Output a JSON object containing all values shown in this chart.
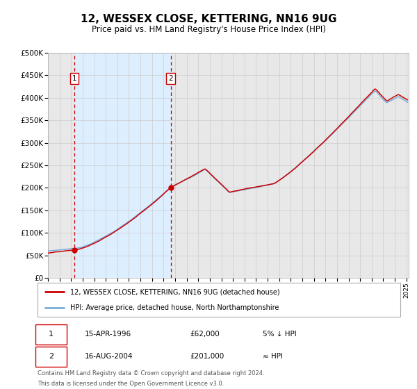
{
  "title": "12, WESSEX CLOSE, KETTERING, NN16 9UG",
  "subtitle": "Price paid vs. HM Land Registry's House Price Index (HPI)",
  "legend_line1": "12, WESSEX CLOSE, KETTERING, NN16 9UG (detached house)",
  "legend_line2": "HPI: Average price, detached house, North Northamptonshire",
  "sale1_date": "15-APR-1996",
  "sale1_price": "£62,000",
  "sale1_hpi": "5% ↓ HPI",
  "sale2_date": "16-AUG-2004",
  "sale2_price": "£201,000",
  "sale2_hpi": "≈ HPI",
  "footnote_line1": "Contains HM Land Registry data © Crown copyright and database right 2024.",
  "footnote_line2": "This data is licensed under the Open Government Licence v3.0.",
  "hpi_color": "#7aaddb",
  "price_color": "#cc0000",
  "sale_marker_color": "#cc0000",
  "dashed_line_color": "#cc0000",
  "shaded_region_color": "#ddeeff",
  "grid_color": "#cccccc",
  "ylim": [
    0,
    500000
  ],
  "yticks": [
    0,
    50000,
    100000,
    150000,
    200000,
    250000,
    300000,
    350000,
    400000,
    450000,
    500000
  ],
  "sale1_x": 1996.29,
  "sale1_y": 62000,
  "sale2_x": 2004.62,
  "sale2_y": 201000,
  "xmin": 1994.0,
  "xmax": 2025.2
}
